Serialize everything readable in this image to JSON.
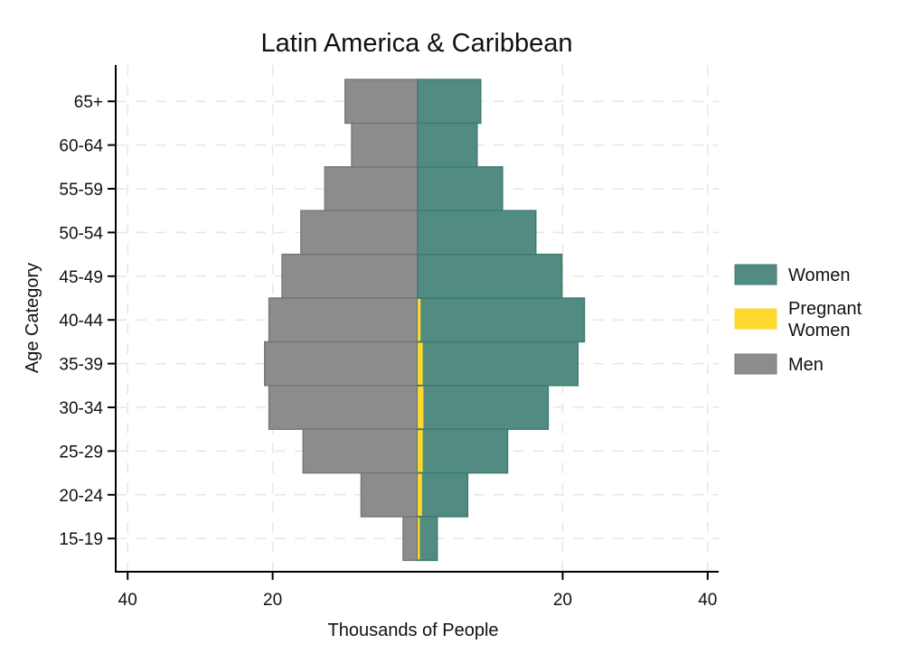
{
  "chart_data": {
    "type": "bar",
    "orientation": "horizontal",
    "subtype": "population pyramid",
    "title": "Latin America & Caribbean",
    "xlabel": "Thousands of People",
    "ylabel": "Age Category",
    "categories": [
      "15-19",
      "20-24",
      "25-29",
      "30-34",
      "35-39",
      "40-44",
      "45-49",
      "50-54",
      "55-59",
      "60-64",
      "65+"
    ],
    "series": [
      {
        "name": "Women",
        "side": "right",
        "values": [
          2.7,
          6.9,
          12.4,
          18.0,
          22.1,
          23.0,
          19.9,
          16.3,
          11.7,
          8.2,
          8.7
        ]
      },
      {
        "name": "Pregnant Women",
        "side": "right",
        "values": [
          0.3,
          0.6,
          0.7,
          0.8,
          0.7,
          0.4,
          0.0,
          0.0,
          0.0,
          0.0,
          0.0
        ]
      },
      {
        "name": "Men",
        "side": "left",
        "values": [
          2.0,
          7.8,
          15.8,
          20.5,
          21.1,
          20.5,
          18.7,
          16.1,
          12.8,
          9.1,
          10.0
        ]
      }
    ],
    "xlim": [
      -40,
      40
    ],
    "xticks": [
      -40,
      -20,
      20,
      40
    ],
    "xtick_labels": [
      "40",
      "20",
      "20",
      "40"
    ],
    "grid": true,
    "legend": {
      "position": "right",
      "entries": [
        {
          "key": "women",
          "label_lines": [
            "Women"
          ],
          "color": "#528b82"
        },
        {
          "key": "pregnant",
          "label_lines": [
            "Pregnant",
            "Women"
          ],
          "color": "#fdd92d"
        },
        {
          "key": "men",
          "label_lines": [
            "Men"
          ],
          "color": "#8c8c8c"
        }
      ]
    },
    "colors": {
      "women": "#528b82",
      "women_edge": "#3f7a70",
      "pregnant": "#fdd92d",
      "men": "#8c8c8c",
      "men_edge": "#777777",
      "grid": "#e6e6e6",
      "axis": "#000000"
    }
  }
}
